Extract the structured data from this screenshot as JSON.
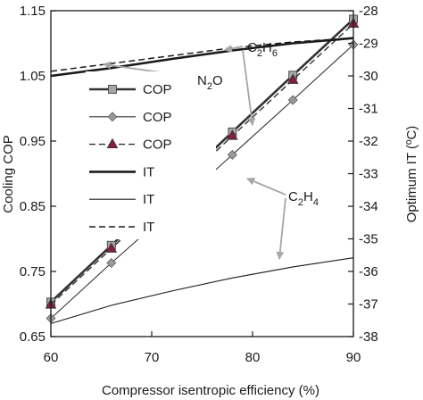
{
  "chart_data": {
    "type": "line",
    "xlabel": "Compressor isentropic efficiency (%)",
    "ylabel_left": "Cooling COP",
    "ylabel_right": "Optimum IT (ºC)",
    "xlim": [
      60,
      90
    ],
    "ylim_left": [
      0.65,
      1.15
    ],
    "ylim_right": [
      -38,
      -28
    ],
    "x_ticks": [
      "60",
      "70",
      "80",
      "90"
    ],
    "y_left_ticks": [
      "0.65",
      "0.75",
      "0.85",
      "0.95",
      "1.05",
      "1.15"
    ],
    "y_right_ticks": [
      "-38",
      "-37",
      "-36",
      "-35",
      "-34",
      "-33",
      "-32",
      "-31",
      "-30",
      "-29",
      "-28"
    ],
    "grid": false,
    "legend": {
      "placement": "left",
      "entries": [
        {
          "label": "COP",
          "series": 0
        },
        {
          "label": "COP",
          "series": 1
        },
        {
          "label": "COP",
          "series": 2
        },
        {
          "label": "IT",
          "series": 3
        },
        {
          "label": "IT",
          "series": 4
        },
        {
          "label": "IT",
          "series": 5
        }
      ]
    },
    "series": [
      {
        "name": "COP",
        "axis": "left",
        "color": "#333333",
        "line": "solid",
        "width": 2.6,
        "marker": "square",
        "marker_color": "#a6a6a6",
        "x": [
          60,
          66,
          72,
          78,
          84,
          90
        ],
        "values": [
          0.703,
          0.79,
          0.876,
          0.964,
          1.051,
          1.137
        ]
      },
      {
        "name": "COP",
        "axis": "left",
        "color": "#333333",
        "line": "solid",
        "width": 1.1,
        "marker": "diamond",
        "marker_color": "#999999",
        "x": [
          60,
          66,
          72,
          78,
          84,
          90
        ],
        "values": [
          0.678,
          0.763,
          0.845,
          0.929,
          1.013,
          1.098
        ]
      },
      {
        "name": "COP",
        "axis": "left",
        "color": "#333333",
        "line": "dashed",
        "width": 1.4,
        "marker": "triangle",
        "marker_color": "#8b1a4a",
        "x": [
          60,
          66,
          72,
          78,
          84,
          90
        ],
        "values": [
          0.699,
          0.785,
          0.871,
          0.958,
          1.044,
          1.13
        ]
      },
      {
        "name": "IT",
        "axis": "right",
        "color": "#1a1a1a",
        "line": "solid",
        "width": 2.6,
        "marker": "none",
        "x": [
          60,
          66,
          72,
          78,
          84,
          90
        ],
        "values": [
          -30.0,
          -29.76,
          -29.48,
          -29.22,
          -29.0,
          -28.84
        ]
      },
      {
        "name": "IT",
        "axis": "right",
        "color": "#1a1a1a",
        "line": "solid",
        "width": 1.1,
        "marker": "none",
        "x": [
          60,
          66,
          72,
          78,
          84,
          90
        ],
        "values": [
          -37.6,
          -37.04,
          -36.6,
          -36.2,
          -35.86,
          -35.58
        ]
      },
      {
        "name": "IT",
        "axis": "right",
        "color": "#1a1a1a",
        "line": "dashed",
        "width": 1.5,
        "marker": "none",
        "x": [
          60,
          66,
          72,
          78,
          84,
          90
        ],
        "values": [
          -29.86,
          -29.62,
          -29.38,
          -29.14,
          -28.96,
          -28.84
        ]
      }
    ],
    "annotations": {
      "n2o": {
        "main": "N",
        "sub1": "2",
        "tail": "O"
      },
      "c2h6": {
        "main": "C",
        "sub1": "2",
        "mid": "H",
        "sub2": "6"
      },
      "c2h4": {
        "main": "C",
        "sub1": "2",
        "mid": "H",
        "sub2": "4"
      },
      "arrow_color": "#a6a6a6"
    }
  }
}
